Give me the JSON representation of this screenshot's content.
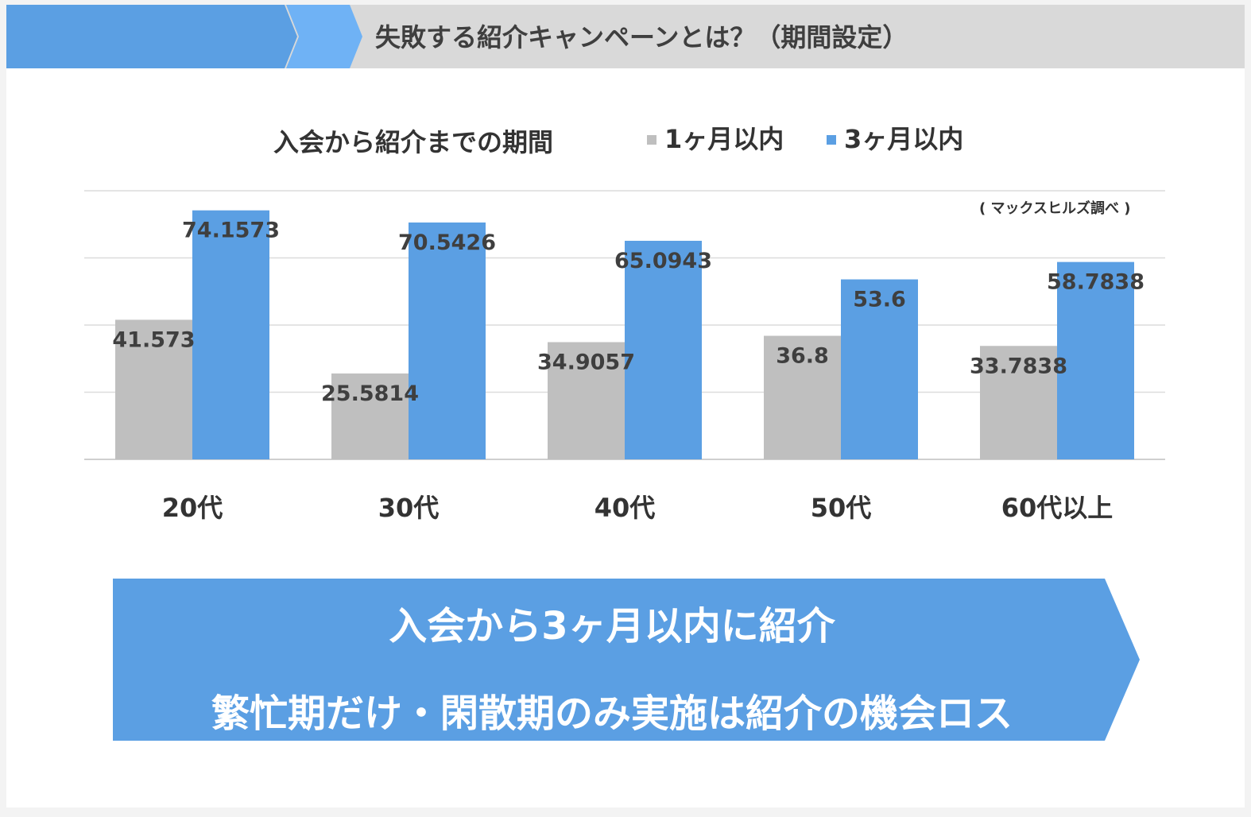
{
  "header": {
    "title": "失敗する紹介キャンペーンとは？（期間設定）",
    "accent_colors": [
      "#5b9fe3",
      "#6fb2f5"
    ]
  },
  "chart_data": {
    "type": "bar",
    "title": "入会から紹介までの期間",
    "source_note": "( マックスヒルズ調べ )",
    "categories": [
      "20代",
      "30代",
      "40代",
      "50代",
      "60代以上"
    ],
    "series": [
      {
        "name": "1ヶ月以内",
        "color": "#bfbfbf",
        "values": [
          41.573,
          25.5814,
          34.9057,
          36.8,
          33.7838
        ],
        "labels": [
          "41.573",
          "25.5814",
          "34.9057",
          "36.8",
          "33.7838"
        ]
      },
      {
        "name": "3ヶ月以内",
        "color": "#5b9fe3",
        "values": [
          74.1573,
          70.5426,
          65.0943,
          53.6,
          58.7838
        ],
        "labels": [
          "74.1573",
          "70.5426",
          "65.0943",
          "53.6",
          "58.7838"
        ]
      }
    ],
    "ylim": [
      0,
      80
    ],
    "grid": true,
    "legend_position": "top"
  },
  "banner": {
    "line1": "入会から3ヶ月以内に紹介",
    "line2": "繁忙期だけ・閑散期のみ実施は紹介の機会ロス",
    "color": "#5b9fe3"
  }
}
